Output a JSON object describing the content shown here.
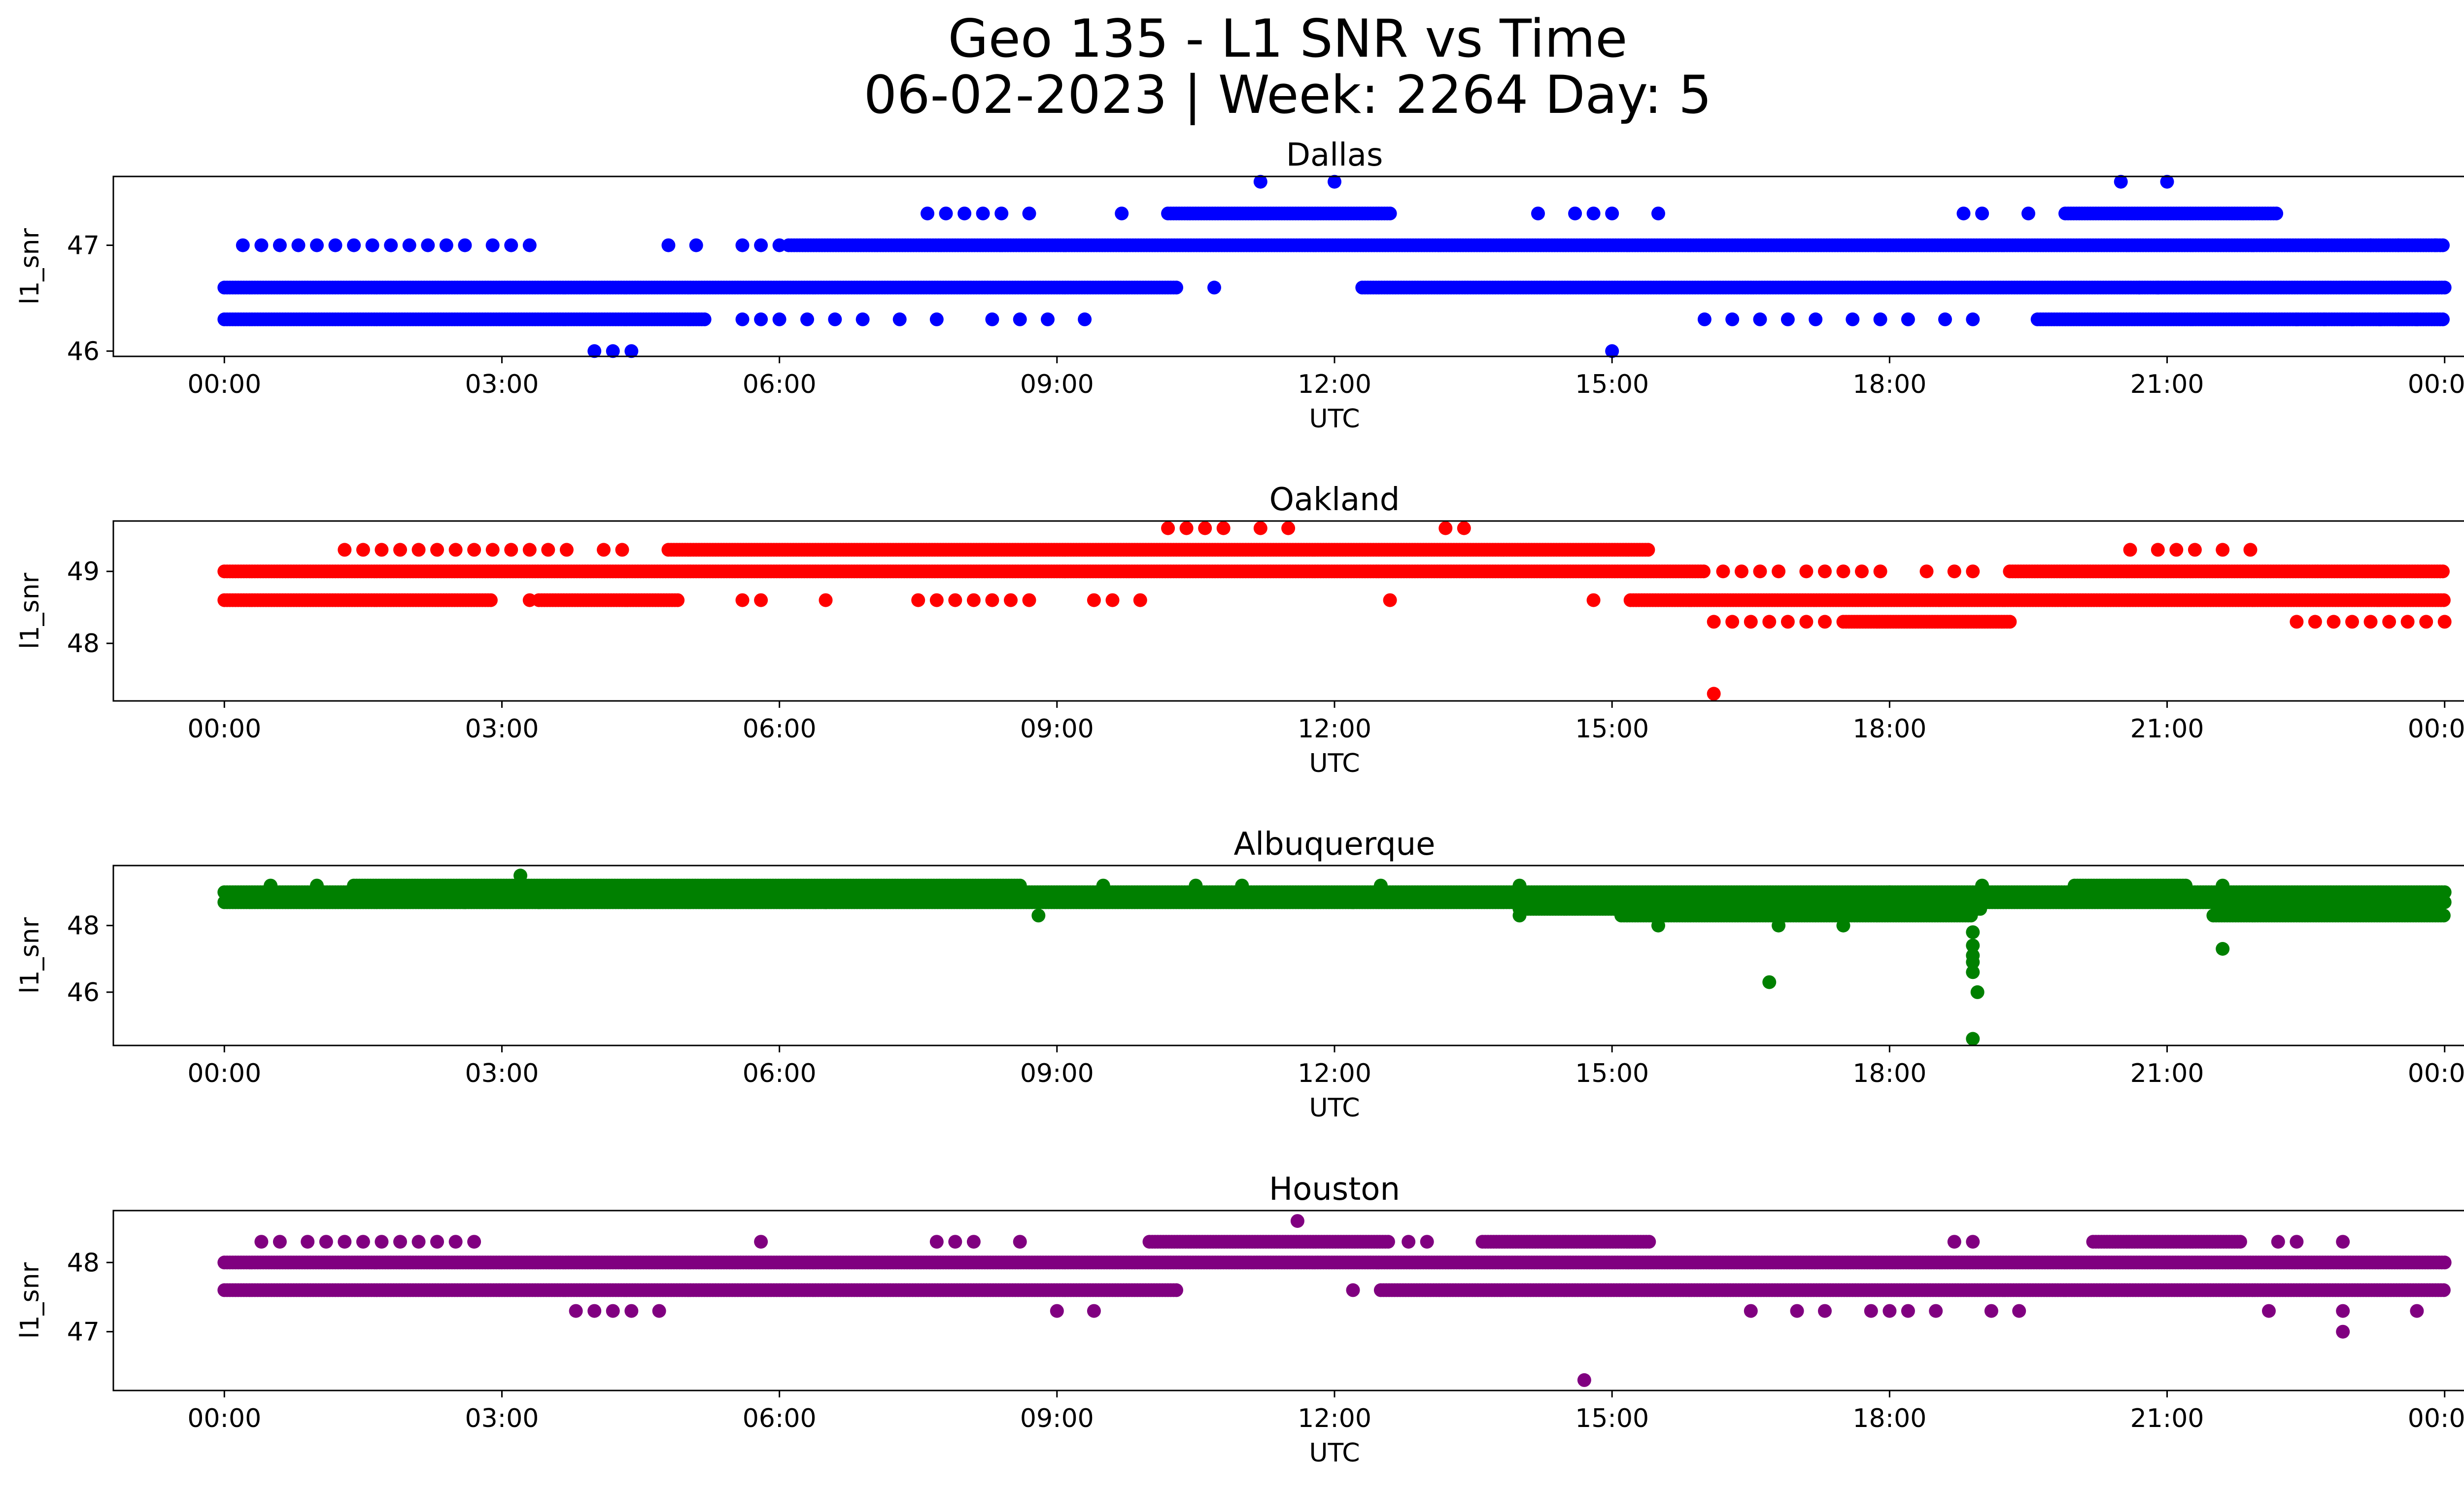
{
  "figure": {
    "title_line1": "Geo 135 - L1 SNR vs Time",
    "title_line2": "06-02-2023 | Week: 2264 Day: 5"
  },
  "chart_data": [
    {
      "type": "scatter",
      "title": "Dallas",
      "xlabel": "UTC",
      "ylabel": "l1_snr",
      "color": "#0000ff",
      "x_ticks": [
        "00:00",
        "03:00",
        "06:00",
        "09:00",
        "12:00",
        "15:00",
        "18:00",
        "21:00",
        "00:00"
      ],
      "xlim_hours": [
        -1.2,
        25.2
      ],
      "yticks": [
        46,
        47
      ],
      "ylim": [
        45.95,
        47.65
      ],
      "bands": [
        {
          "y": 46.6,
          "segments": [
            [
              0.0,
              10.3
            ],
            [
              12.3,
              24.0
            ]
          ]
        },
        {
          "y": 47.0,
          "segments": [
            [
              6.1,
              24.0
            ]
          ]
        },
        {
          "y": 46.3,
          "segments": [
            [
              0.0,
              5.2
            ],
            [
              19.6,
              24.0
            ]
          ]
        },
        {
          "y": 47.3,
          "segments": [
            [
              10.2,
              12.6
            ],
            [
              19.9,
              22.2
            ]
          ]
        }
      ],
      "points": [
        [
          0.2,
          47
        ],
        [
          0.4,
          47
        ],
        [
          0.6,
          47
        ],
        [
          0.8,
          47
        ],
        [
          1.0,
          47
        ],
        [
          1.2,
          47
        ],
        [
          1.4,
          47
        ],
        [
          1.6,
          47
        ],
        [
          1.8,
          47
        ],
        [
          2.0,
          47
        ],
        [
          2.2,
          47
        ],
        [
          2.4,
          47
        ],
        [
          2.6,
          47
        ],
        [
          2.9,
          47
        ],
        [
          3.1,
          47
        ],
        [
          3.3,
          47
        ],
        [
          4.8,
          47
        ],
        [
          5.1,
          47
        ],
        [
          5.6,
          47
        ],
        [
          5.8,
          47
        ],
        [
          6.0,
          47
        ],
        [
          10.7,
          46.6
        ],
        [
          4.0,
          46.0
        ],
        [
          4.2,
          46.0
        ],
        [
          4.4,
          46.0
        ],
        [
          15.0,
          46.0
        ],
        [
          5.6,
          46.3
        ],
        [
          5.8,
          46.3
        ],
        [
          6.0,
          46.3
        ],
        [
          6.3,
          46.3
        ],
        [
          6.6,
          46.3
        ],
        [
          6.9,
          46.3
        ],
        [
          7.3,
          46.3
        ],
        [
          7.7,
          46.3
        ],
        [
          8.3,
          46.3
        ],
        [
          8.6,
          46.3
        ],
        [
          8.9,
          46.3
        ],
        [
          9.3,
          46.3
        ],
        [
          16.0,
          46.3
        ],
        [
          16.3,
          46.3
        ],
        [
          16.6,
          46.3
        ],
        [
          16.9,
          46.3
        ],
        [
          17.2,
          46.3
        ],
        [
          17.6,
          46.3
        ],
        [
          17.9,
          46.3
        ],
        [
          18.2,
          46.3
        ],
        [
          18.6,
          46.3
        ],
        [
          18.9,
          46.3
        ],
        [
          7.6,
          47.3
        ],
        [
          7.8,
          47.3
        ],
        [
          8.0,
          47.3
        ],
        [
          8.2,
          47.3
        ],
        [
          8.4,
          47.3
        ],
        [
          8.7,
          47.3
        ],
        [
          9.7,
          47.3
        ],
        [
          14.2,
          47.3
        ],
        [
          14.6,
          47.3
        ],
        [
          14.8,
          47.3
        ],
        [
          15.0,
          47.3
        ],
        [
          15.5,
          47.3
        ],
        [
          18.8,
          47.3
        ],
        [
          19.0,
          47.3
        ],
        [
          19.5,
          47.3
        ],
        [
          11.2,
          47.6
        ],
        [
          12.0,
          47.6
        ],
        [
          20.5,
          47.6
        ],
        [
          21.0,
          47.6
        ],
        [
          22.4,
          46.3
        ],
        [
          22.7,
          46.3
        ],
        [
          23.0,
          46.3
        ],
        [
          23.3,
          46.3
        ],
        [
          23.5,
          46.3
        ],
        [
          23.7,
          46.3
        ],
        [
          20.7,
          46.6
        ],
        [
          20.9,
          46.6
        ],
        [
          23.2,
          47
        ],
        [
          23.5,
          47
        ],
        [
          23.9,
          47
        ]
      ]
    },
    {
      "type": "scatter",
      "title": "Oakland",
      "xlabel": "UTC",
      "ylabel": "l1_snr",
      "color": "#ff0000",
      "x_ticks": [
        "00:00",
        "03:00",
        "06:00",
        "09:00",
        "12:00",
        "15:00",
        "18:00",
        "21:00",
        "00:00"
      ],
      "xlim_hours": [
        -1.2,
        25.2
      ],
      "yticks": [
        48,
        49
      ],
      "ylim": [
        47.2,
        49.7
      ],
      "bands": [
        {
          "y": 49.0,
          "segments": [
            [
              0.0,
              16.0
            ],
            [
              19.3,
              24.0
            ]
          ]
        },
        {
          "y": 49.3,
          "segments": [
            [
              4.8,
              15.4
            ]
          ]
        },
        {
          "y": 48.6,
          "segments": [
            [
              0.0,
              2.9
            ],
            [
              3.4,
              4.9
            ],
            [
              15.2,
              24.0
            ]
          ]
        },
        {
          "y": 48.3,
          "segments": [
            [
              17.5,
              19.3
            ]
          ]
        }
      ],
      "points": [
        [
          1.3,
          49.3
        ],
        [
          1.5,
          49.3
        ],
        [
          1.7,
          49.3
        ],
        [
          1.9,
          49.3
        ],
        [
          2.1,
          49.3
        ],
        [
          2.3,
          49.3
        ],
        [
          2.5,
          49.3
        ],
        [
          2.7,
          49.3
        ],
        [
          2.9,
          49.3
        ],
        [
          3.1,
          49.3
        ],
        [
          3.3,
          49.3
        ],
        [
          3.5,
          49.3
        ],
        [
          3.7,
          49.3
        ],
        [
          4.1,
          49.3
        ],
        [
          4.3,
          49.3
        ],
        [
          10.2,
          49.6
        ],
        [
          10.4,
          49.6
        ],
        [
          10.6,
          49.6
        ],
        [
          10.8,
          49.6
        ],
        [
          11.2,
          49.6
        ],
        [
          11.5,
          49.6
        ],
        [
          13.2,
          49.6
        ],
        [
          13.4,
          49.6
        ],
        [
          3.3,
          48.6
        ],
        [
          5.6,
          48.6
        ],
        [
          5.8,
          48.6
        ],
        [
          6.5,
          48.6
        ],
        [
          7.5,
          48.6
        ],
        [
          7.7,
          48.6
        ],
        [
          7.9,
          48.6
        ],
        [
          8.1,
          48.6
        ],
        [
          8.3,
          48.6
        ],
        [
          8.5,
          48.6
        ],
        [
          8.7,
          48.6
        ],
        [
          9.4,
          48.6
        ],
        [
          9.6,
          48.6
        ],
        [
          9.9,
          48.6
        ],
        [
          12.6,
          48.6
        ],
        [
          14.8,
          48.6
        ],
        [
          16.2,
          49.0
        ],
        [
          16.4,
          49.0
        ],
        [
          16.6,
          49.0
        ],
        [
          16.8,
          49.0
        ],
        [
          17.1,
          49.0
        ],
        [
          17.3,
          49.0
        ],
        [
          17.5,
          49.0
        ],
        [
          17.7,
          49.0
        ],
        [
          17.9,
          49.0
        ],
        [
          18.4,
          49.0
        ],
        [
          18.7,
          49.0
        ],
        [
          18.9,
          49.0
        ],
        [
          16.1,
          48.3
        ],
        [
          16.3,
          48.3
        ],
        [
          16.5,
          48.3
        ],
        [
          16.7,
          48.3
        ],
        [
          16.9,
          48.3
        ],
        [
          17.1,
          48.3
        ],
        [
          17.3,
          48.3
        ],
        [
          22.4,
          48.3
        ],
        [
          22.6,
          48.3
        ],
        [
          22.8,
          48.3
        ],
        [
          23.0,
          48.3
        ],
        [
          23.2,
          48.3
        ],
        [
          23.4,
          48.3
        ],
        [
          23.6,
          48.3
        ],
        [
          23.8,
          48.3
        ],
        [
          24.0,
          48.3
        ],
        [
          20.6,
          49.3
        ],
        [
          20.9,
          49.3
        ],
        [
          21.1,
          49.3
        ],
        [
          21.3,
          49.3
        ],
        [
          21.6,
          49.3
        ],
        [
          21.9,
          49.3
        ],
        [
          16.1,
          47.3
        ]
      ]
    },
    {
      "type": "scatter",
      "title": "Albuquerque",
      "xlabel": "UTC",
      "ylabel": "l1_snr",
      "color": "#008000",
      "x_ticks": [
        "00:00",
        "03:00",
        "06:00",
        "09:00",
        "12:00",
        "15:00",
        "18:00",
        "21:00",
        "00:00"
      ],
      "xlim_hours": [
        -1.2,
        25.2
      ],
      "yticks": [
        46,
        48
      ],
      "ylim": [
        44.4,
        49.8
      ],
      "bands": [
        {
          "y": 49.0,
          "segments": [
            [
              0.0,
              24.0
            ]
          ]
        },
        {
          "y": 48.7,
          "segments": [
            [
              0.0,
              24.0
            ]
          ]
        },
        {
          "y": 49.2,
          "segments": [
            [
              1.4,
              8.6
            ],
            [
              20.0,
              21.2
            ]
          ]
        },
        {
          "y": 48.3,
          "segments": [
            [
              15.1,
              18.9
            ],
            [
              21.5,
              24.0
            ]
          ]
        },
        {
          "y": 48.5,
          "segments": [
            [
              14.0,
              19.0
            ]
          ]
        }
      ],
      "points": [
        [
          3.2,
          49.5
        ],
        [
          0.5,
          49.2
        ],
        [
          1.0,
          49.2
        ],
        [
          9.5,
          49.2
        ],
        [
          10.5,
          49.2
        ],
        [
          11.0,
          49.2
        ],
        [
          12.5,
          49.2
        ],
        [
          14.0,
          49.2
        ],
        [
          18.0,
          49.0
        ],
        [
          19.0,
          49.2
        ],
        [
          21.6,
          49.2
        ],
        [
          8.8,
          48.3
        ],
        [
          14.0,
          48.3
        ],
        [
          15.5,
          48.0
        ],
        [
          16.8,
          48.0
        ],
        [
          17.5,
          48.0
        ],
        [
          18.9,
          47.8
        ],
        [
          18.9,
          47.4
        ],
        [
          18.9,
          47.1
        ],
        [
          18.9,
          46.9
        ],
        [
          18.9,
          46.6
        ],
        [
          18.95,
          46.0
        ],
        [
          18.9,
          44.6
        ],
        [
          16.7,
          46.3
        ],
        [
          21.6,
          47.3
        ],
        [
          2.6,
          48.7
        ],
        [
          3.4,
          48.7
        ],
        [
          6.5,
          48.7
        ],
        [
          12.2,
          48.7
        ]
      ]
    },
    {
      "type": "scatter",
      "title": "Houston",
      "xlabel": "UTC",
      "ylabel": "l1_snr",
      "color": "#800080",
      "x_ticks": [
        "00:00",
        "03:00",
        "06:00",
        "09:00",
        "12:00",
        "15:00",
        "18:00",
        "21:00",
        "00:00"
      ],
      "xlim_hours": [
        -1.2,
        25.2
      ],
      "yticks": [
        47,
        48
      ],
      "ylim": [
        46.15,
        48.75
      ],
      "bands": [
        {
          "y": 48.0,
          "segments": [
            [
              0.0,
              24.0
            ]
          ]
        },
        {
          "y": 47.6,
          "segments": [
            [
              0.0,
              10.3
            ],
            [
              12.5,
              24.0
            ]
          ]
        },
        {
          "y": 48.3,
          "segments": [
            [
              10.0,
              12.6
            ],
            [
              13.6,
              15.4
            ],
            [
              20.2,
              21.8
            ]
          ]
        }
      ],
      "points": [
        [
          0.4,
          48.3
        ],
        [
          0.6,
          48.3
        ],
        [
          0.9,
          48.3
        ],
        [
          1.1,
          48.3
        ],
        [
          1.3,
          48.3
        ],
        [
          1.5,
          48.3
        ],
        [
          1.7,
          48.3
        ],
        [
          1.9,
          48.3
        ],
        [
          2.1,
          48.3
        ],
        [
          2.3,
          48.3
        ],
        [
          2.5,
          48.3
        ],
        [
          2.7,
          48.3
        ],
        [
          5.8,
          48.3
        ],
        [
          7.7,
          48.3
        ],
        [
          7.9,
          48.3
        ],
        [
          8.1,
          48.3
        ],
        [
          8.6,
          48.3
        ],
        [
          12.8,
          48.3
        ],
        [
          13.0,
          48.3
        ],
        [
          18.7,
          48.3
        ],
        [
          18.9,
          48.3
        ],
        [
          22.2,
          48.3
        ],
        [
          22.4,
          48.3
        ],
        [
          22.9,
          48.3
        ],
        [
          11.6,
          48.6
        ],
        [
          3.8,
          47.3
        ],
        [
          4.0,
          47.3
        ],
        [
          4.2,
          47.3
        ],
        [
          4.4,
          47.3
        ],
        [
          4.7,
          47.3
        ],
        [
          9.0,
          47.3
        ],
        [
          9.4,
          47.3
        ],
        [
          16.5,
          47.3
        ],
        [
          17.0,
          47.3
        ],
        [
          17.3,
          47.3
        ],
        [
          17.8,
          47.3
        ],
        [
          18.0,
          47.3
        ],
        [
          18.2,
          47.3
        ],
        [
          18.5,
          47.3
        ],
        [
          19.1,
          47.3
        ],
        [
          19.4,
          47.3
        ],
        [
          22.1,
          47.3
        ],
        [
          22.9,
          47.3
        ],
        [
          23.7,
          47.3
        ],
        [
          22.9,
          47.0
        ],
        [
          12.2,
          47.6
        ],
        [
          14.7,
          46.3
        ]
      ]
    }
  ]
}
